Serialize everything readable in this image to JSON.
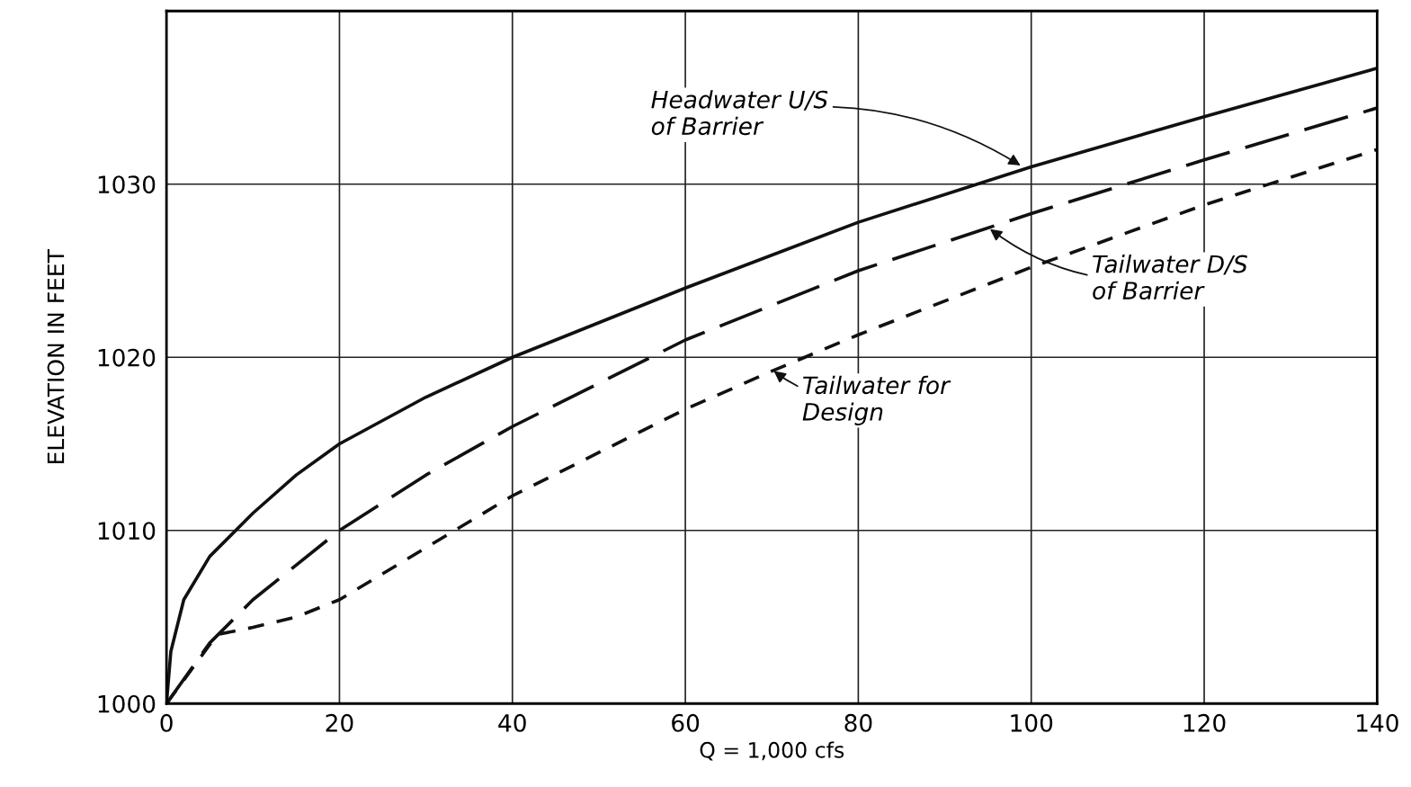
{
  "chart_data": {
    "type": "line",
    "xlabel": "Q = 1,000 cfs",
    "ylabel": "ELEVATION IN FEET",
    "xlim": [
      0,
      140
    ],
    "ylim": [
      1000,
      1040
    ],
    "xticks": [
      0,
      20,
      40,
      60,
      80,
      100,
      120,
      140
    ],
    "yticks": [
      1000,
      1010,
      1020,
      1030
    ],
    "grid": true,
    "marker": "none",
    "series": [
      {
        "color": "#111111",
        "line_style": "solid",
        "x": [
          0,
          0.5,
          2,
          5,
          10,
          15,
          20,
          30,
          40,
          60,
          80,
          100,
          120,
          140
        ],
        "values": [
          1000,
          1003,
          1006,
          1008.5,
          1011,
          1013.2,
          1015,
          1017.7,
          1020,
          1024,
          1027.8,
          1031,
          1033.9,
          1036.7
        ]
      },
      {
        "color": "#111111",
        "line_style": "dashed",
        "x": [
          0,
          5,
          10,
          20,
          30,
          40,
          60,
          80,
          100,
          120,
          140
        ],
        "values": [
          1000,
          1003.5,
          1006,
          1010,
          1013.2,
          1016,
          1021,
          1025,
          1028.3,
          1031.4,
          1034.4
        ]
      },
      {
        "color": "#111111",
        "line_style": "dotted",
        "x": [
          0,
          5,
          6,
          10,
          15,
          20,
          30,
          40,
          60,
          70,
          80,
          100,
          120,
          140
        ],
        "values": [
          1000,
          1003.4,
          1004,
          1004.4,
          1005,
          1006,
          1009,
          1012,
          1017,
          1019.2,
          1021.3,
          1025.2,
          1028.8,
          1032
        ]
      }
    ],
    "annotations": [
      {
        "text": "Headwater U/S\nof Barrier",
        "x": 99,
        "y": 1031
      },
      {
        "text": "Tailwater D/S\nof Barrier",
        "x": 95,
        "y": 1027.5
      },
      {
        "text": "Tailwater for\nDesign",
        "x": 70,
        "y": 1019.3
      }
    ]
  }
}
